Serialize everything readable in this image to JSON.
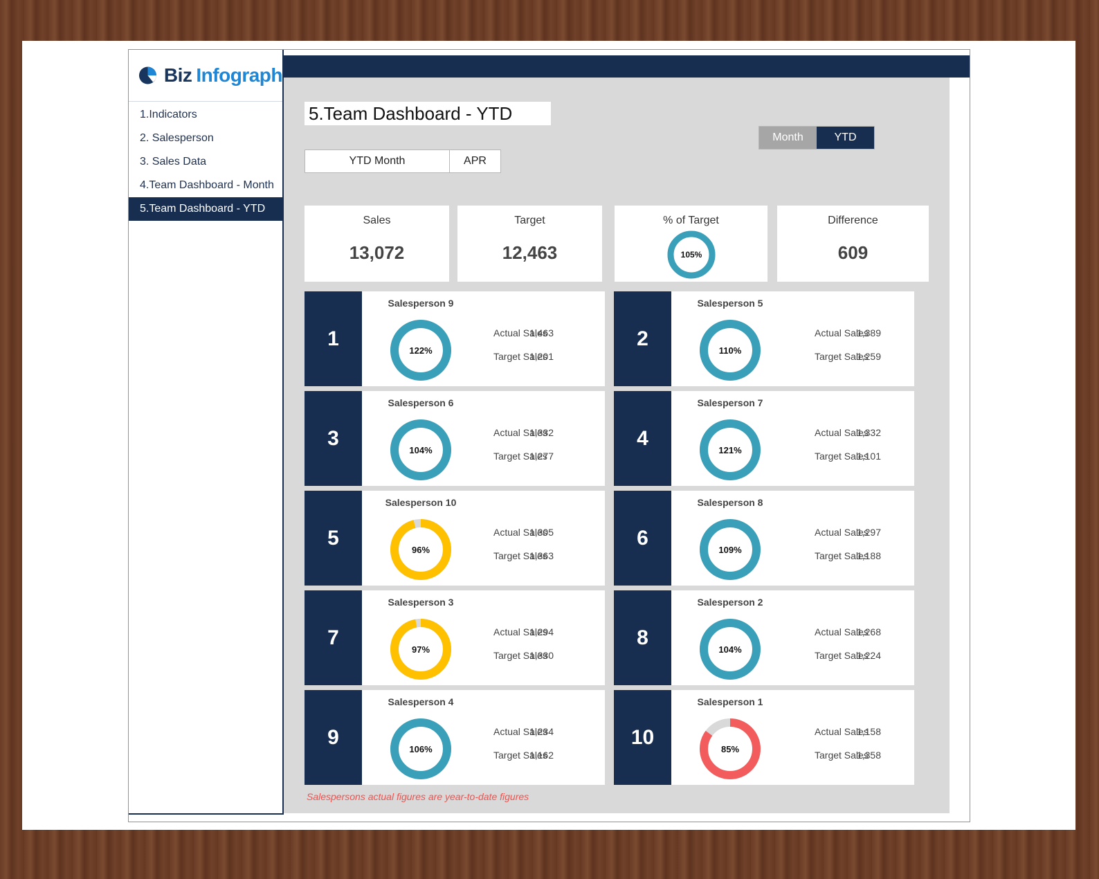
{
  "brand": {
    "part1": "Biz",
    "part2": "Infograph",
    "colors": {
      "navy": "#172e50",
      "blue": "#1e86d4"
    }
  },
  "nav": {
    "items": [
      {
        "label": "1.Indicators"
      },
      {
        "label": "2. Salesperson"
      },
      {
        "label": "3. Sales Data"
      },
      {
        "label": "4.Team Dashboard - Month"
      },
      {
        "label": "5.Team Dashboard - YTD"
      }
    ]
  },
  "page": {
    "title": "5.Team Dashboard - YTD"
  },
  "period": {
    "label": "YTD Month",
    "value": "APR"
  },
  "toggle": {
    "month": "Month",
    "ytd": "YTD"
  },
  "kpis": {
    "sales": {
      "label": "Sales",
      "value": "13,072"
    },
    "target": {
      "label": "Target",
      "value": "12,463"
    },
    "pct": {
      "label": "% of Target",
      "value": "105%",
      "percent": 105
    },
    "difference": {
      "label": "Difference",
      "value": "609"
    }
  },
  "labels": {
    "actual": "Actual Sales",
    "target": "Target Sales"
  },
  "colors": {
    "good": "#3a9fb8",
    "warn": "#ffc000",
    "bad": "#f25c5c",
    "track": "#d9d9d9"
  },
  "salespeople": [
    {
      "rank": "1",
      "name": "Salesperson 9",
      "pct_label": "122%",
      "percent": 122,
      "actual": "1,463",
      "target": "1,201",
      "status": "good"
    },
    {
      "rank": "2",
      "name": "Salesperson 5",
      "pct_label": "110%",
      "percent": 110,
      "actual": "1,389",
      "target": "1,259",
      "status": "good"
    },
    {
      "rank": "3",
      "name": "Salesperson 6",
      "pct_label": "104%",
      "percent": 104,
      "actual": "1,332",
      "target": "1,277",
      "status": "good"
    },
    {
      "rank": "4",
      "name": "Salesperson 7",
      "pct_label": "121%",
      "percent": 121,
      "actual": "1,332",
      "target": "1,101",
      "status": "good"
    },
    {
      "rank": "5",
      "name": "Salesperson 10",
      "pct_label": "96%",
      "percent": 96,
      "actual": "1,305",
      "target": "1,363",
      "status": "warn"
    },
    {
      "rank": "6",
      "name": "Salesperson 8",
      "pct_label": "109%",
      "percent": 109,
      "actual": "1,297",
      "target": "1,188",
      "status": "good"
    },
    {
      "rank": "7",
      "name": "Salesperson 3",
      "pct_label": "97%",
      "percent": 97,
      "actual": "1,294",
      "target": "1,330",
      "status": "warn"
    },
    {
      "rank": "8",
      "name": "Salesperson 2",
      "pct_label": "104%",
      "percent": 104,
      "actual": "1,268",
      "target": "1,224",
      "status": "good"
    },
    {
      "rank": "9",
      "name": "Salesperson 4",
      "pct_label": "106%",
      "percent": 106,
      "actual": "1,234",
      "target": "1,162",
      "status": "good"
    },
    {
      "rank": "10",
      "name": "Salesperson 1",
      "pct_label": "85%",
      "percent": 85,
      "actual": "1,158",
      "target": "1,358",
      "status": "bad"
    }
  ],
  "footnote": "Salespersons actual figures are year-to-date figures"
}
